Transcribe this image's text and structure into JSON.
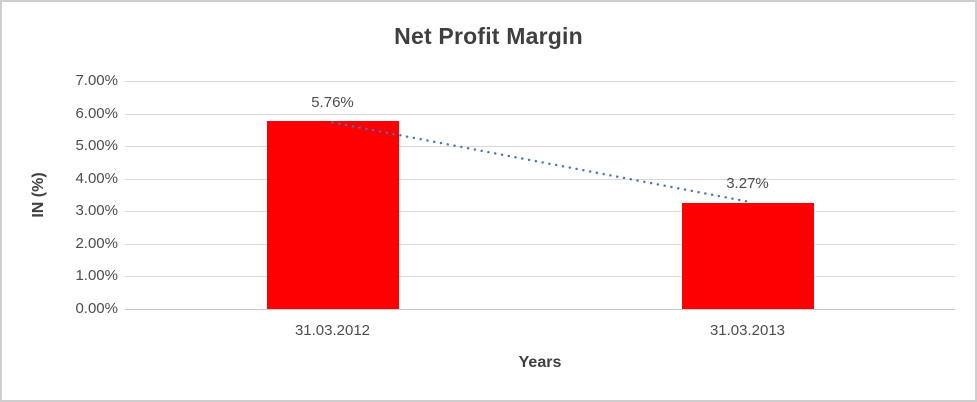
{
  "chart_data": {
    "type": "bar",
    "title": "Net Profit Margin",
    "categories": [
      "31.03.2012",
      "31.03.2013"
    ],
    "values": [
      5.76,
      3.27
    ],
    "data_labels": [
      "5.76%",
      "3.27%"
    ],
    "xlabel": "Years",
    "ylabel": "IN (%)",
    "ylim": [
      0,
      7
    ],
    "ytick_step": 1,
    "ytick_labels": [
      "0.00%",
      "1.00%",
      "2.00%",
      "3.00%",
      "4.00%",
      "5.00%",
      "6.00%",
      "7.00%"
    ],
    "grid": true,
    "legend": "none",
    "bar_color": "#ff0000",
    "trendline": {
      "type": "linear",
      "style": "dotted",
      "color": "#4472c4"
    },
    "gridline_color": "#d9d9d9",
    "text_color": "#4d4d4d",
    "title_color": "#3f3f3f"
  }
}
